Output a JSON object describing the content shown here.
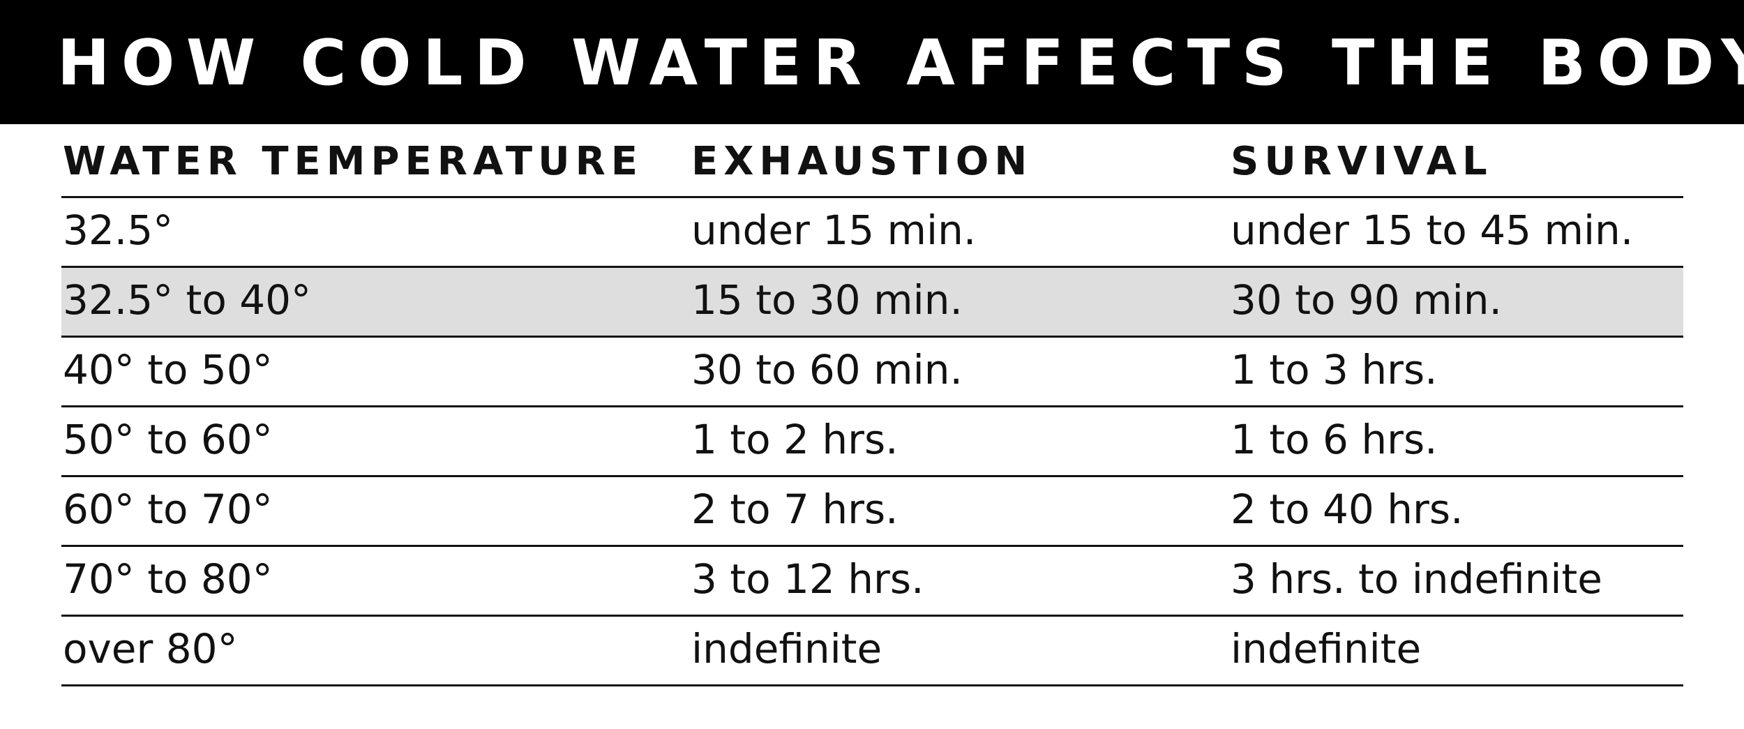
{
  "title": "HOW COLD WATER AFFECTS THE BODY",
  "colors": {
    "title_background": "#000000",
    "title_text": "#ffffff",
    "shaded_row": "#dedede",
    "rule": "#111111"
  },
  "table": {
    "headers": [
      "WATER TEMPERATURE",
      "EXHAUSTION",
      "SURVIVAL"
    ],
    "rows": [
      {
        "temperature": "32.5°",
        "exhaustion": "under 15 min.",
        "survival": "under 15 to 45 min.",
        "shaded": false
      },
      {
        "temperature": "32.5° to 40°",
        "exhaustion": "15 to 30 min.",
        "survival": "30 to 90 min.",
        "shaded": true
      },
      {
        "temperature": "40° to 50°",
        "exhaustion": "30 to 60 min.",
        "survival": "1 to 3 hrs.",
        "shaded": false
      },
      {
        "temperature": "50° to 60°",
        "exhaustion": "1 to 2 hrs.",
        "survival": "1 to 6 hrs.",
        "shaded": false
      },
      {
        "temperature": "60° to 70°",
        "exhaustion": "2 to 7 hrs.",
        "survival": "2 to 40 hrs.",
        "shaded": false
      },
      {
        "temperature": "70° to 80°",
        "exhaustion": "3 to 12 hrs.",
        "survival": "3 hrs. to indefinite",
        "shaded": false
      },
      {
        "temperature": "over 80°",
        "exhaustion": "indefinite",
        "survival": "indefinite",
        "shaded": false
      }
    ]
  }
}
